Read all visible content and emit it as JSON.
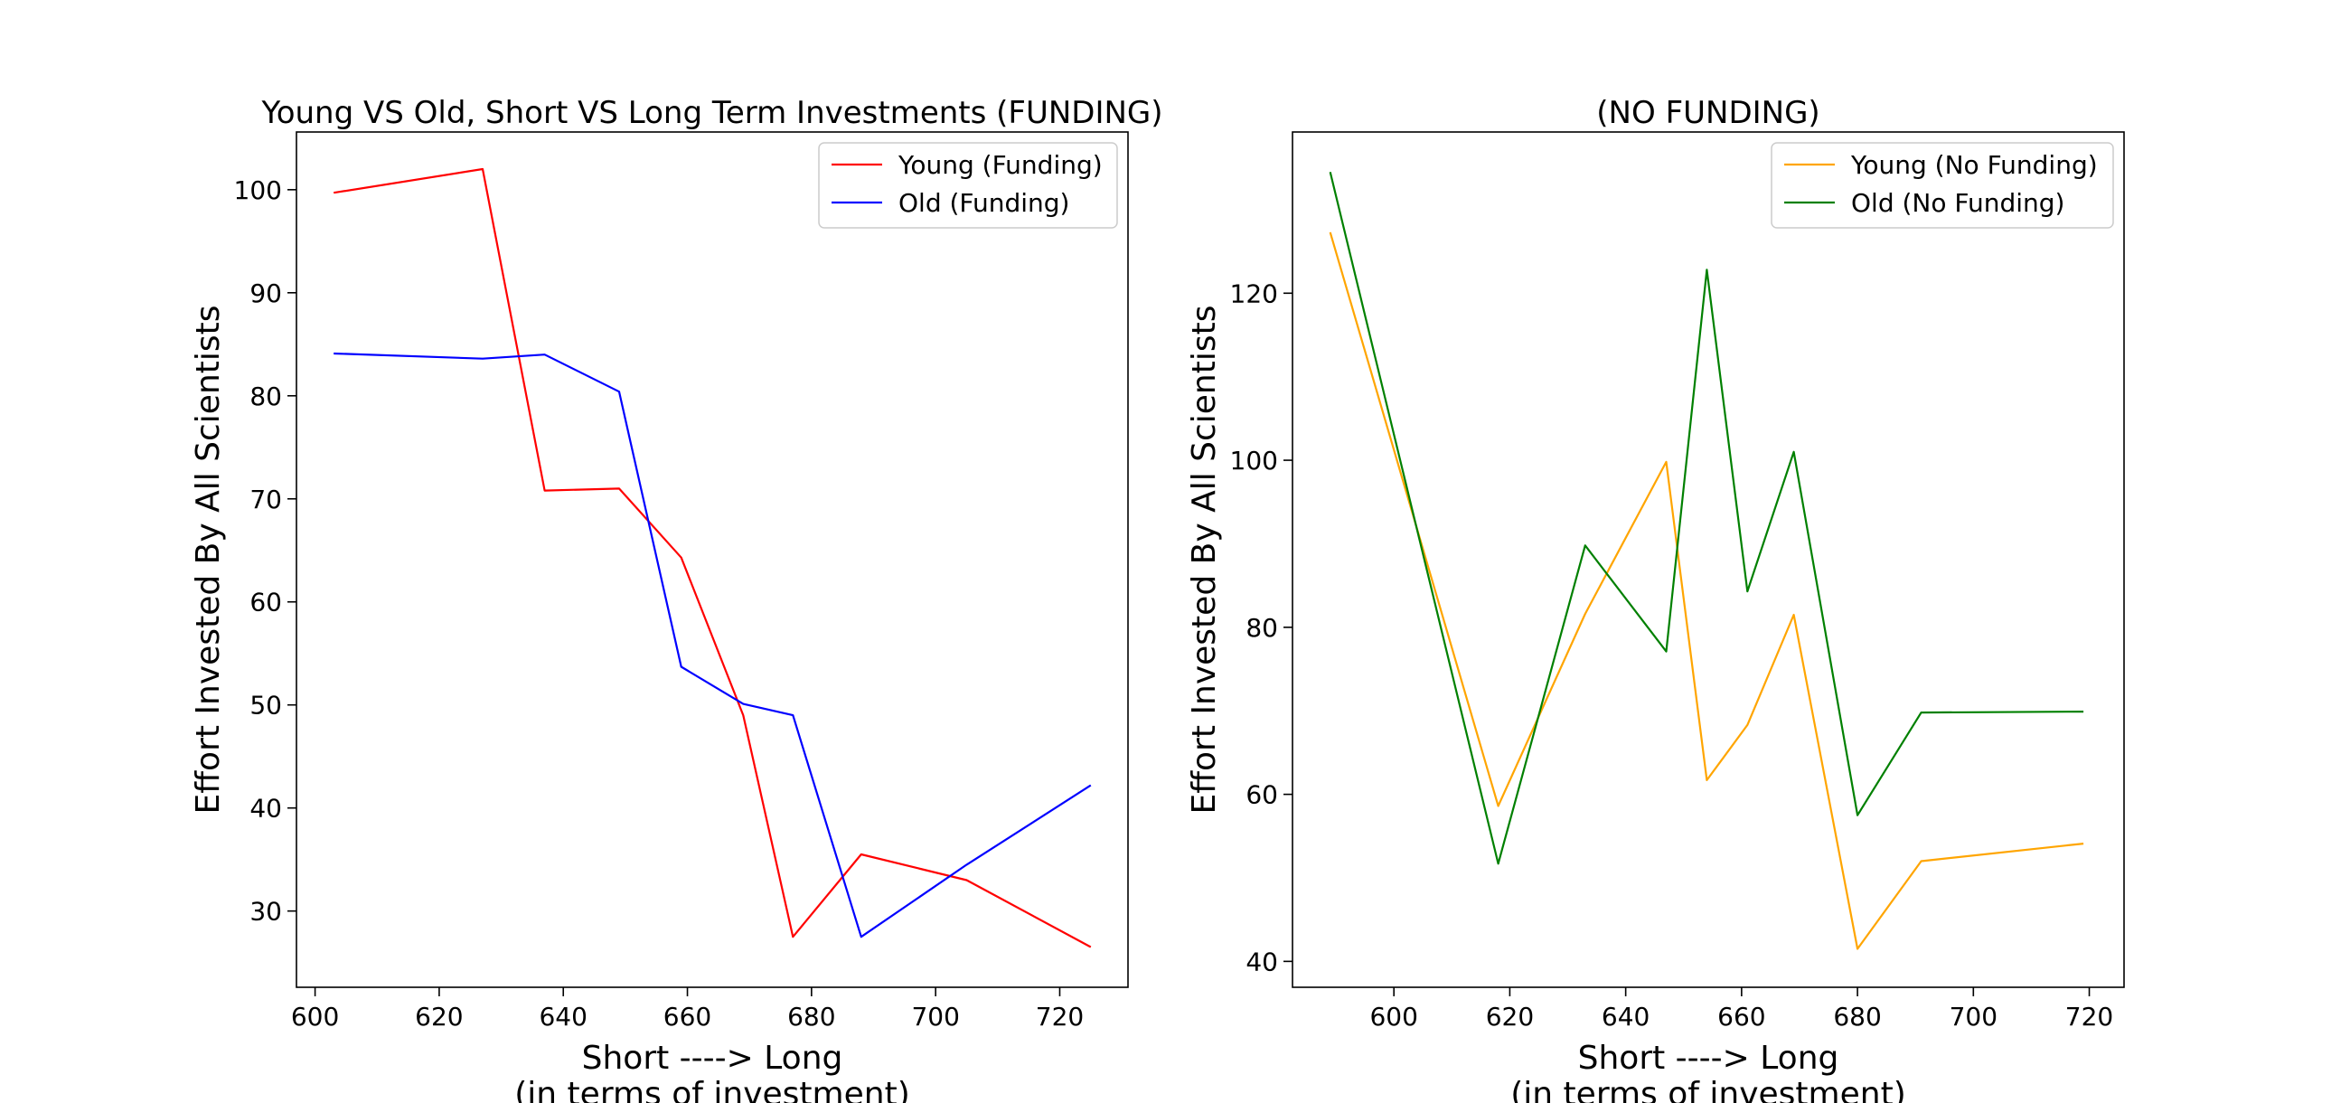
{
  "chart_data": [
    {
      "type": "line",
      "title": "Young VS Old, Short VS Long Term Investments (FUNDING)",
      "xlabel": "Short ----> Long",
      "xlabel2": "(in terms of investment)",
      "ylabel": "Effort Invested By All Scientists",
      "xlim": [
        597,
        731
      ],
      "ylim": [
        22.6,
        105.6
      ],
      "xticks": [
        600,
        620,
        640,
        660,
        680,
        700,
        720
      ],
      "yticks": [
        30,
        40,
        50,
        60,
        70,
        80,
        90,
        100
      ],
      "legend_position": "top-right",
      "series": [
        {
          "name": "Young (Funding)",
          "color": "#ff0000",
          "x": [
            603,
            627,
            637,
            649,
            659,
            669,
            677,
            688,
            705,
            725
          ],
          "y": [
            99.7,
            102.0,
            70.8,
            71.0,
            64.3,
            49.0,
            27.5,
            35.5,
            33.0,
            26.5
          ]
        },
        {
          "name": "Old (Funding)",
          "color": "#0000ff",
          "x": [
            603,
            627,
            637,
            649,
            659,
            669,
            677,
            688,
            705,
            725
          ],
          "y": [
            84.1,
            83.6,
            84.0,
            80.4,
            53.7,
            50.1,
            49.0,
            27.5,
            34.5,
            42.2
          ]
        }
      ]
    },
    {
      "type": "line",
      "title": "(NO FUNDING)",
      "xlabel": "Short ----> Long",
      "xlabel2": "(in terms of investment)",
      "ylabel": "Effort Invested By All Scientists",
      "xlim": [
        582.5,
        726
      ],
      "ylim": [
        36.9,
        139.3
      ],
      "xticks": [
        600,
        620,
        640,
        660,
        680,
        700,
        720
      ],
      "yticks": [
        40,
        60,
        80,
        100,
        120
      ],
      "legend_position": "top-right",
      "series": [
        {
          "name": "Young (No Funding)",
          "color": "#ffa500",
          "x": [
            589,
            618,
            633,
            647,
            654,
            661,
            669,
            680,
            691,
            719
          ],
          "y": [
            127.3,
            58.6,
            81.6,
            99.8,
            61.7,
            68.3,
            81.5,
            41.5,
            52.0,
            54.1
          ]
        },
        {
          "name": "Old (No Funding)",
          "color": "#008000",
          "x": [
            589,
            618,
            633,
            647,
            654,
            661,
            669,
            680,
            691,
            719
          ],
          "y": [
            134.5,
            51.7,
            89.8,
            77.1,
            122.8,
            84.3,
            101.0,
            57.5,
            69.8,
            69.9
          ]
        }
      ]
    }
  ]
}
